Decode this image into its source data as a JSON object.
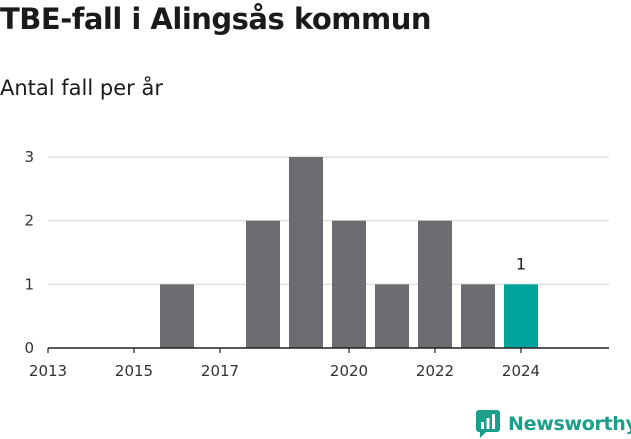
{
  "title": "TBE-fall i Alingsås kommun",
  "subtitle": "Antal fall per år",
  "brand": {
    "name": "Newsworthy",
    "color": "#1b9e8a",
    "icon": "newsworthy-logo-icon"
  },
  "colors": {
    "bar": "#6d6c70",
    "highlight": "#00a49a",
    "grid": "#d9d9d9",
    "axis": "#222222"
  },
  "chart_data": {
    "type": "bar",
    "categories": [
      "2013",
      "2014",
      "2015",
      "2016",
      "2017",
      "2018",
      "2019",
      "2020",
      "2021",
      "2022",
      "2023",
      "2024"
    ],
    "values": [
      0,
      0,
      0,
      1,
      0,
      2,
      3,
      2,
      1,
      2,
      1,
      1
    ],
    "highlight_index": 11,
    "highlight_label": "1",
    "x_tick_labels": [
      "2013",
      "2015",
      "2017",
      "2020",
      "2022",
      "2024"
    ],
    "y_ticks": [
      0,
      1,
      2,
      3
    ],
    "ylim": [
      0,
      3
    ],
    "xlabel": "",
    "ylabel": "",
    "grid": true,
    "legend": "none"
  }
}
